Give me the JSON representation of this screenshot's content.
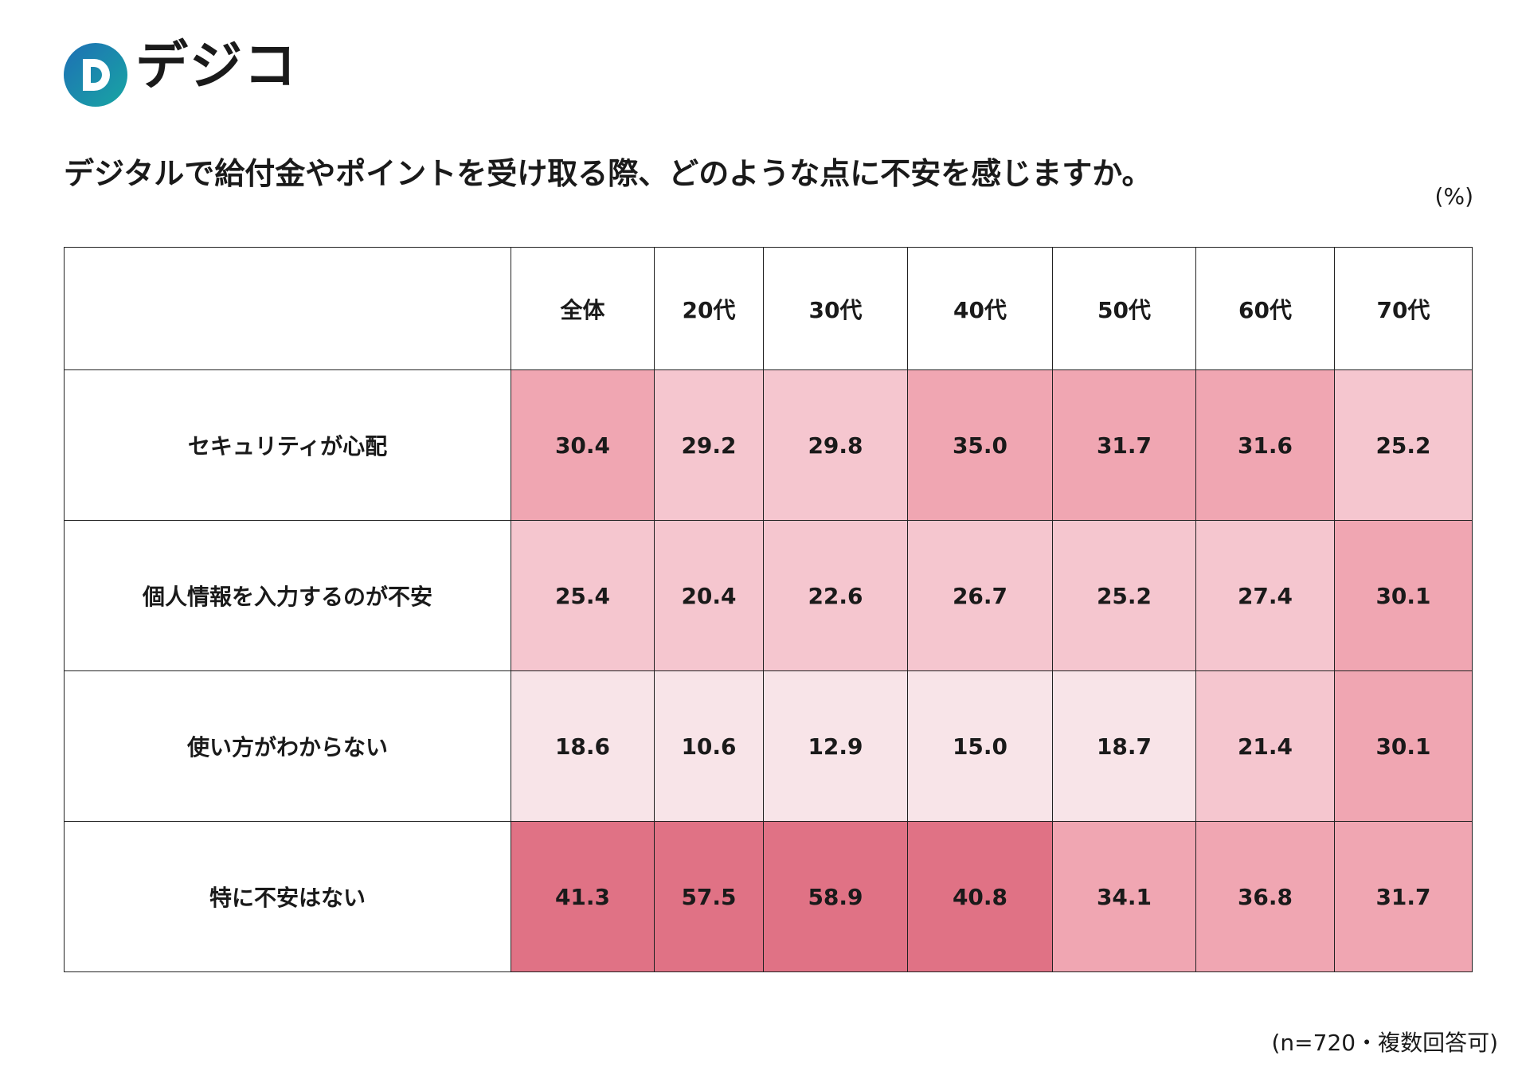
{
  "header": {
    "logo": "デジコ",
    "title": "デジタルで給付金やポイントを受け取る際、どのような点に不安を感じますか。",
    "unit": "(%)"
  },
  "table": {
    "columns": [
      "全体",
      "20代",
      "30代",
      "40代",
      "50代",
      "60代",
      "70代"
    ],
    "rows": [
      {
        "label": "セキュリティが心配",
        "values": [
          "30.4",
          "29.2",
          "29.8",
          "35.0",
          "31.7",
          "31.6",
          "25.2"
        ],
        "colors": [
          "#f0a6b2",
          "#f5c6cf",
          "#f5c6cf",
          "#f0a6b2",
          "#f0a6b2",
          "#f0a6b2",
          "#f5c6cf"
        ]
      },
      {
        "label": "個人情報を入力するのが不安",
        "values": [
          "25.4",
          "20.4",
          "22.6",
          "26.7",
          "25.2",
          "27.4",
          "30.1"
        ],
        "colors": [
          "#f5c6cf",
          "#f5c6cf",
          "#f5c6cf",
          "#f5c6cf",
          "#f5c6cf",
          "#f5c6cf",
          "#f0a6b2"
        ]
      },
      {
        "label": "使い方がわからない",
        "values": [
          "18.6",
          "10.6",
          "12.9",
          "15.0",
          "18.7",
          "21.4",
          "30.1"
        ],
        "colors": [
          "#f8e4e8",
          "#f8e4e8",
          "#f8e4e8",
          "#f8e4e8",
          "#f8e4e8",
          "#f5c6cf",
          "#f0a6b2"
        ]
      },
      {
        "label": "特に不安はない",
        "values": [
          "41.3",
          "57.5",
          "58.9",
          "40.8",
          "34.1",
          "36.8",
          "31.7"
        ],
        "colors": [
          "#e07285",
          "#e07285",
          "#e07285",
          "#e07285",
          "#f0a6b2",
          "#f0a6b2",
          "#f0a6b2"
        ]
      }
    ]
  },
  "footnote": "(n=720・複数回答可)"
}
